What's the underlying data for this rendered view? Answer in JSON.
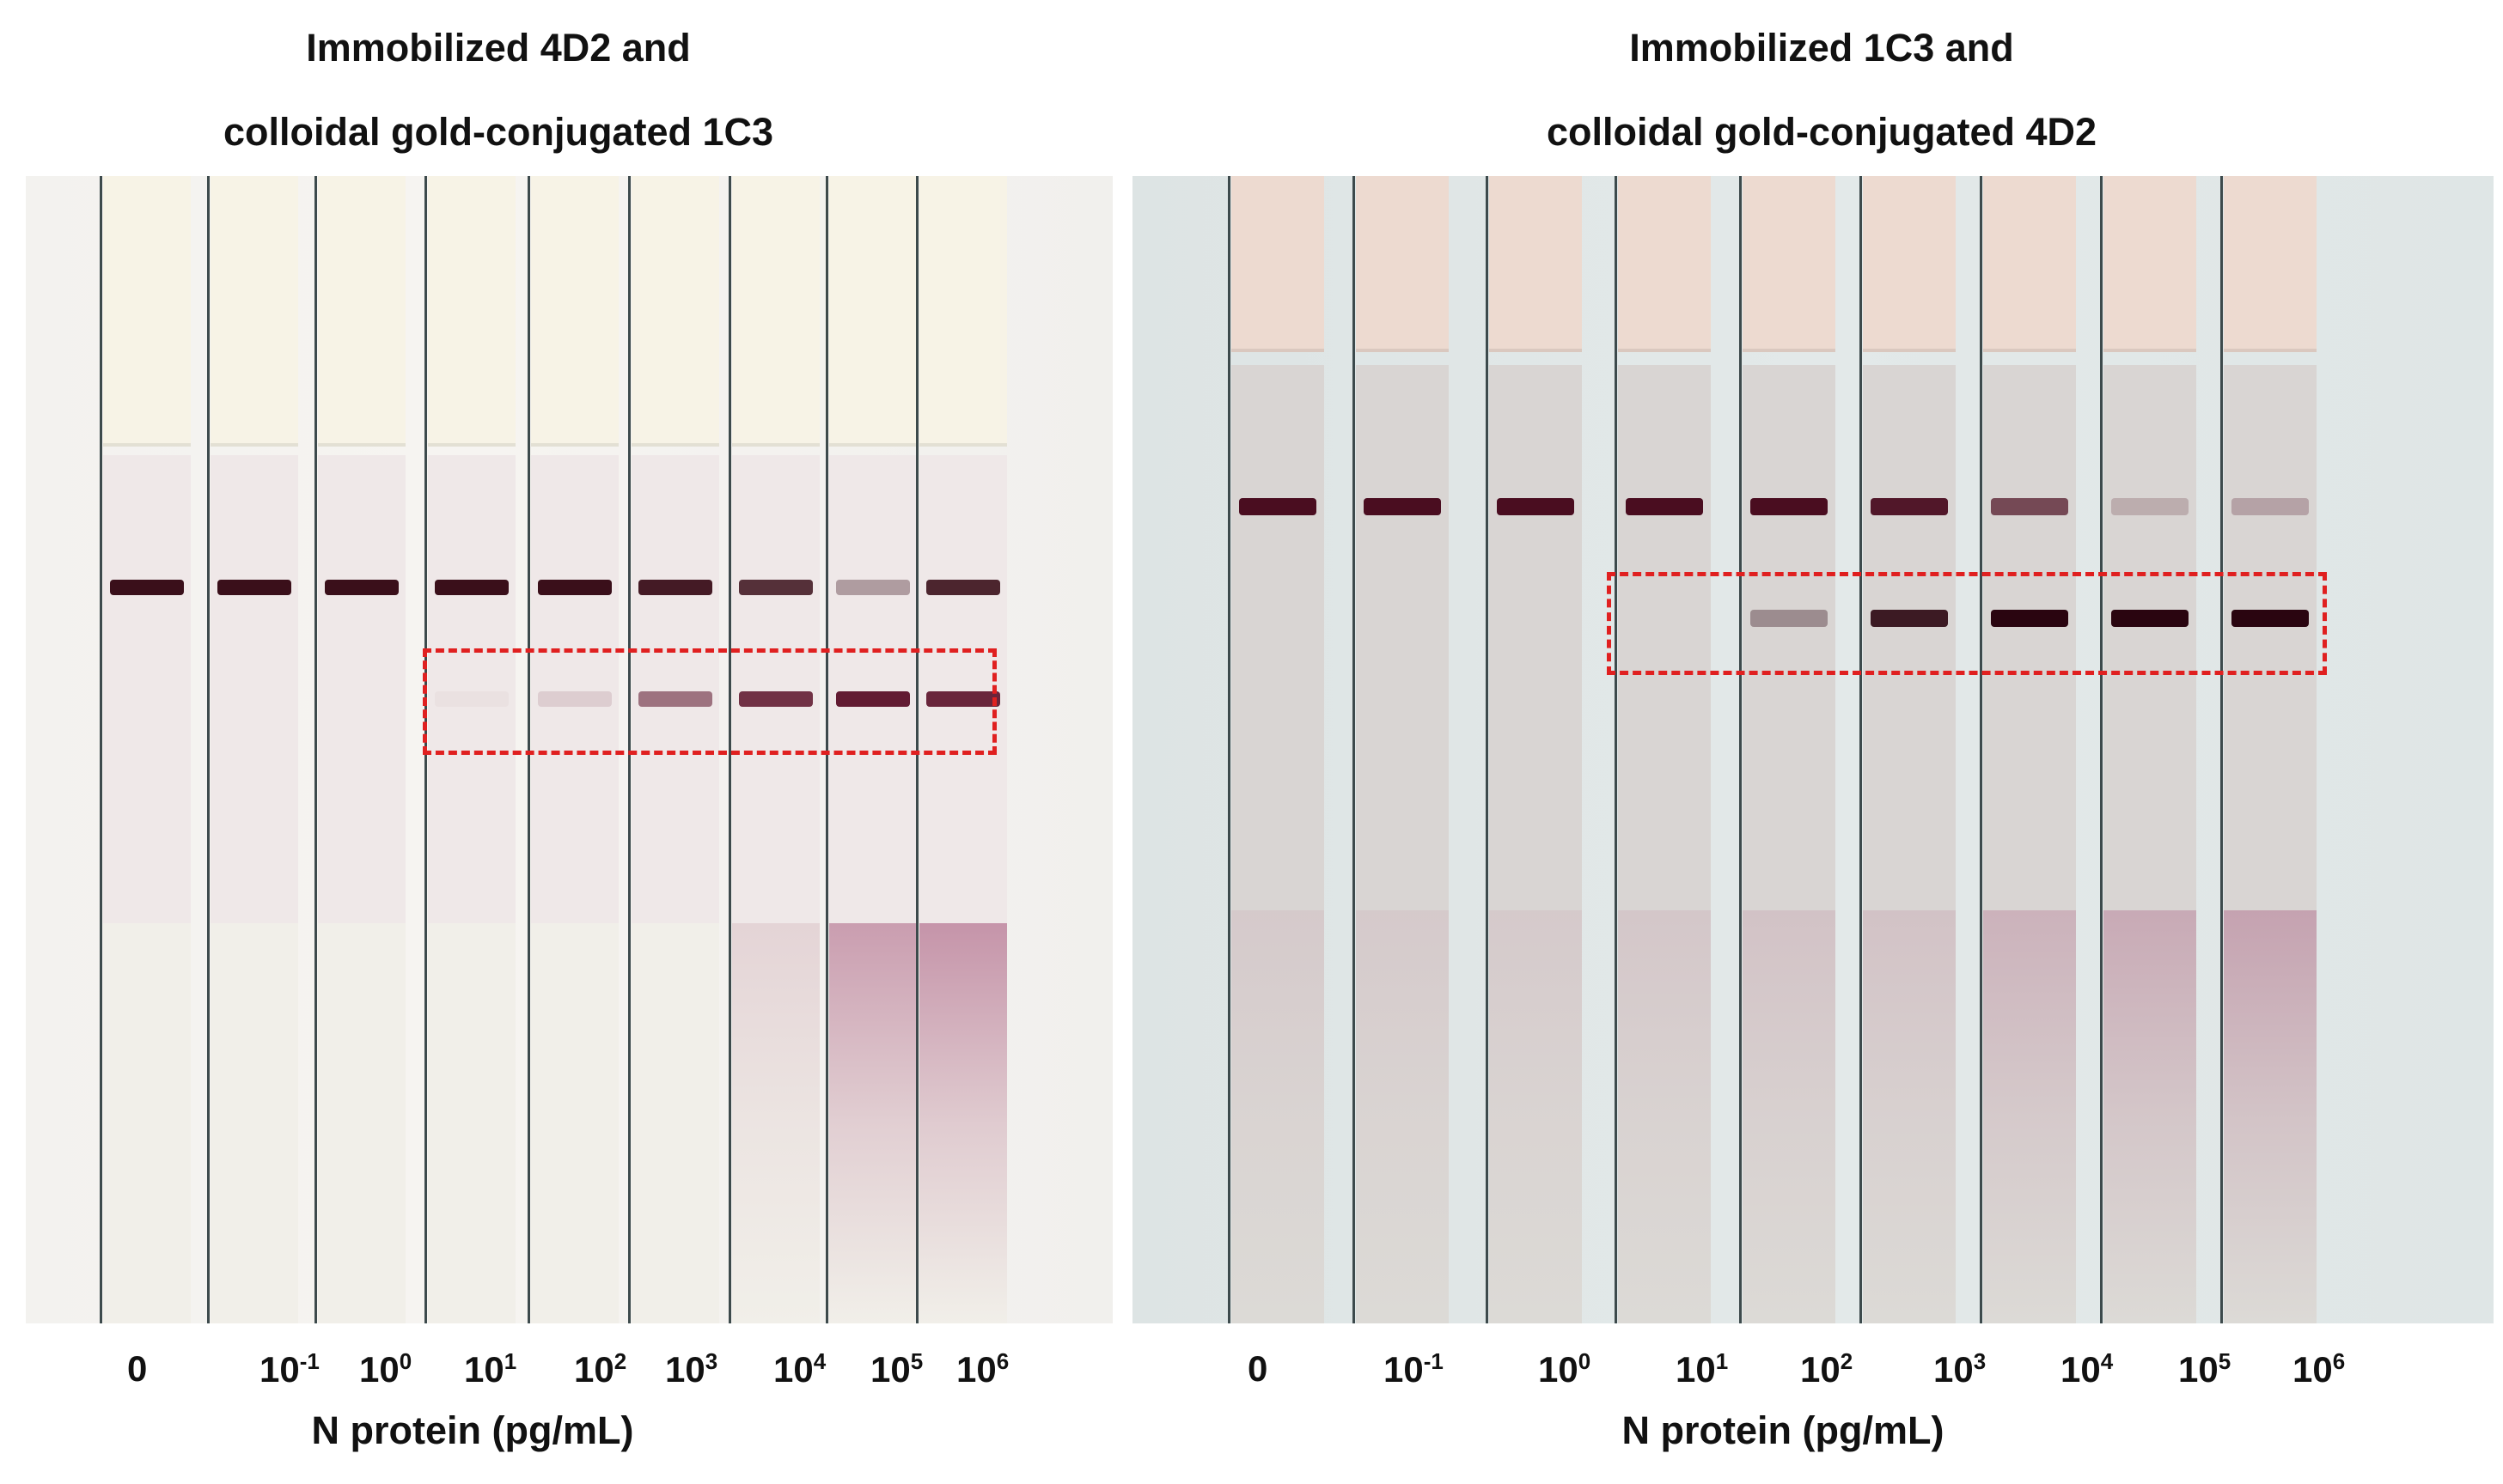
{
  "panels": [
    {
      "title_line1": "Immobilized 4D2 and",
      "title_line2": "colloidal gold-conjugated 1C3",
      "xlabel": "N protein (pg/mL)",
      "ticks": [
        {
          "base": "0",
          "exp": ""
        },
        {
          "base": "10",
          "exp": "-1"
        },
        {
          "base": "10",
          "exp": "0"
        },
        {
          "base": "10",
          "exp": "1"
        },
        {
          "base": "10",
          "exp": "2"
        },
        {
          "base": "10",
          "exp": "3"
        },
        {
          "base": "10",
          "exp": "4"
        },
        {
          "base": "10",
          "exp": "5"
        },
        {
          "base": "10",
          "exp": "6"
        }
      ],
      "control_intensity": [
        1,
        1,
        1,
        1,
        1,
        0.95,
        0.85,
        0.35,
        0.9
      ],
      "test_intensity": [
        0,
        0,
        0,
        0.03,
        0.12,
        0.55,
        0.85,
        0.95,
        0.9
      ],
      "sample_pad_stain": [
        0,
        0,
        0,
        0,
        0,
        0,
        0.15,
        0.45,
        0.5
      ],
      "colors": {
        "band": "#3a0f1a",
        "test_band": "#5a1028",
        "dashed_box": "#e02020"
      }
    },
    {
      "title_line1": "Immobilized 1C3 and",
      "title_line2": "colloidal gold-conjugated 4D2",
      "xlabel": "N protein (pg/mL)",
      "ticks": [
        {
          "base": "0",
          "exp": ""
        },
        {
          "base": "10",
          "exp": "-1"
        },
        {
          "base": "10",
          "exp": "0"
        },
        {
          "base": "10",
          "exp": "1"
        },
        {
          "base": "10",
          "exp": "2"
        },
        {
          "base": "10",
          "exp": "3"
        },
        {
          "base": "10",
          "exp": "4"
        },
        {
          "base": "10",
          "exp": "5"
        },
        {
          "base": "10",
          "exp": "6"
        }
      ],
      "control_intensity": [
        1,
        1,
        1,
        1,
        1,
        0.95,
        0.7,
        0.2,
        0.25
      ],
      "test_intensity": [
        0,
        0,
        0,
        0,
        0.35,
        0.9,
        1,
        1,
        1
      ],
      "sample_pad_stain": [
        0.1,
        0.1,
        0.1,
        0.12,
        0.15,
        0.15,
        0.25,
        0.3,
        0.35
      ],
      "colors": {
        "band": "#4a0d20",
        "test_band": "#2a0510",
        "dashed_box": "#e02020"
      }
    }
  ]
}
